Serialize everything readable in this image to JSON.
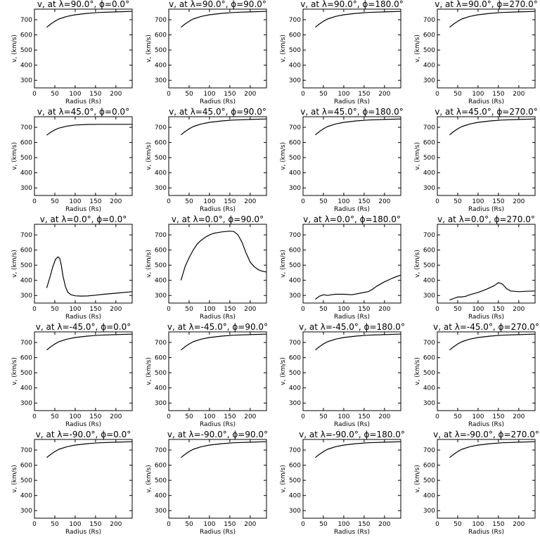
{
  "chart_data": [
    {
      "type": "line",
      "title": "v, at λ=90.0°, ϕ=0.0°",
      "xlabel": "Radius (Rs)",
      "ylabel": "v, (km/s)",
      "xlim": [
        0,
        240
      ],
      "ylim": [
        250,
        770
      ],
      "x_ticks": [
        "0",
        "50",
        "100",
        "150",
        "200"
      ],
      "y_ticks": [
        "300",
        "400",
        "500",
        "600",
        "700"
      ],
      "series": [
        {
          "x": [
            30,
            40,
            50,
            60,
            80,
            100,
            130,
            160,
            200,
            240
          ],
          "y": [
            650,
            672,
            690,
            705,
            722,
            733,
            742,
            748,
            752,
            755
          ]
        }
      ]
    },
    {
      "type": "line",
      "title": "v, at λ=90.0°, ϕ=90.0°",
      "xlabel": "Radius (Rs)",
      "ylabel": "v, (km/s)",
      "xlim": [
        0,
        240
      ],
      "ylim": [
        250,
        770
      ],
      "x_ticks": [
        "0",
        "50",
        "100",
        "150",
        "200"
      ],
      "y_ticks": [
        "300",
        "400",
        "500",
        "600",
        "700"
      ],
      "series": [
        {
          "x": [
            30,
            40,
            50,
            60,
            80,
            100,
            130,
            160,
            200,
            240
          ],
          "y": [
            650,
            672,
            690,
            705,
            722,
            733,
            742,
            748,
            752,
            755
          ]
        }
      ]
    },
    {
      "type": "line",
      "title": "v, at λ=90.0°, ϕ=180.0°",
      "xlabel": "Radius (Rs)",
      "ylabel": "v, (km/s)",
      "xlim": [
        0,
        240
      ],
      "ylim": [
        250,
        770
      ],
      "x_ticks": [
        "0",
        "50",
        "100",
        "150",
        "200"
      ],
      "y_ticks": [
        "300",
        "400",
        "500",
        "600",
        "700"
      ],
      "series": [
        {
          "x": [
            30,
            40,
            50,
            60,
            80,
            100,
            130,
            160,
            200,
            240
          ],
          "y": [
            650,
            672,
            690,
            705,
            722,
            733,
            742,
            748,
            752,
            755
          ]
        }
      ]
    },
    {
      "type": "line",
      "title": "v, at λ=90.0°, ϕ=270.0°",
      "xlabel": "Radius (Rs)",
      "ylabel": "v, (km/s)",
      "xlim": [
        0,
        240
      ],
      "ylim": [
        250,
        770
      ],
      "x_ticks": [
        "0",
        "50",
        "100",
        "150",
        "200"
      ],
      "y_ticks": [
        "300",
        "400",
        "500",
        "600",
        "700"
      ],
      "series": [
        {
          "x": [
            30,
            40,
            50,
            60,
            80,
            100,
            130,
            160,
            200,
            240
          ],
          "y": [
            650,
            672,
            690,
            705,
            722,
            733,
            742,
            748,
            752,
            755
          ]
        }
      ]
    },
    {
      "type": "line",
      "title": "v, at λ=45.0°, ϕ=0.0°",
      "xlabel": "Radius (Rs)",
      "ylabel": "v, (km/s)",
      "xlim": [
        0,
        240
      ],
      "ylim": [
        250,
        770
      ],
      "x_ticks": [
        "0",
        "50",
        "100",
        "150",
        "200"
      ],
      "y_ticks": [
        "300",
        "400",
        "500",
        "600",
        "700"
      ],
      "series": [
        {
          "x": [
            30,
            40,
            50,
            60,
            80,
            100,
            130,
            160,
            200,
            240
          ],
          "y": [
            648,
            668,
            683,
            695,
            708,
            715,
            719,
            720,
            720,
            720
          ]
        }
      ]
    },
    {
      "type": "line",
      "title": "v, at λ=45.0°, ϕ=90.0°",
      "xlabel": "Radius (Rs)",
      "ylabel": "v, (km/s)",
      "xlim": [
        0,
        240
      ],
      "ylim": [
        250,
        770
      ],
      "x_ticks": [
        "0",
        "50",
        "100",
        "150",
        "200"
      ],
      "y_ticks": [
        "300",
        "400",
        "500",
        "600",
        "700"
      ],
      "series": [
        {
          "x": [
            30,
            40,
            50,
            60,
            80,
            100,
            130,
            160,
            200,
            240
          ],
          "y": [
            650,
            672,
            690,
            705,
            722,
            733,
            742,
            748,
            752,
            755
          ]
        }
      ]
    },
    {
      "type": "line",
      "title": "v, at λ=45.0°, ϕ=180.0°",
      "xlabel": "Radius (Rs)",
      "ylabel": "v, (km/s)",
      "xlim": [
        0,
        240
      ],
      "ylim": [
        250,
        770
      ],
      "x_ticks": [
        "0",
        "50",
        "100",
        "150",
        "200"
      ],
      "y_ticks": [
        "300",
        "400",
        "500",
        "600",
        "700"
      ],
      "series": [
        {
          "x": [
            30,
            40,
            50,
            60,
            80,
            100,
            130,
            160,
            200,
            240
          ],
          "y": [
            650,
            672,
            690,
            705,
            722,
            733,
            742,
            748,
            752,
            755
          ]
        }
      ]
    },
    {
      "type": "line",
      "title": "v, at λ=45.0°, ϕ=270.0°",
      "xlabel": "Radius (Rs)",
      "ylabel": "v, (km/s)",
      "xlim": [
        0,
        240
      ],
      "ylim": [
        250,
        770
      ],
      "x_ticks": [
        "0",
        "50",
        "100",
        "150",
        "200"
      ],
      "y_ticks": [
        "300",
        "400",
        "500",
        "600",
        "700"
      ],
      "series": [
        {
          "x": [
            30,
            40,
            50,
            60,
            80,
            100,
            130,
            160,
            200,
            240
          ],
          "y": [
            650,
            672,
            690,
            705,
            722,
            733,
            742,
            748,
            752,
            755
          ]
        }
      ]
    },
    {
      "type": "line",
      "title": "v, at λ=0.0°, ϕ=0.0°",
      "xlabel": "Radius (Rs)",
      "ylabel": "v, (km/s)",
      "xlim": [
        0,
        240
      ],
      "ylim": [
        250,
        770
      ],
      "x_ticks": [
        "0",
        "50",
        "100",
        "150",
        "200"
      ],
      "y_ticks": [
        "300",
        "400",
        "500",
        "600",
        "700"
      ],
      "series": [
        {
          "x": [
            30,
            38,
            45,
            52,
            58,
            62,
            66,
            70,
            76,
            82,
            90,
            100,
            115,
            130,
            150,
            170,
            200,
            240
          ],
          "y": [
            350,
            420,
            490,
            540,
            555,
            545,
            500,
            430,
            360,
            320,
            305,
            298,
            296,
            297,
            302,
            308,
            315,
            325
          ]
        }
      ]
    },
    {
      "type": "line",
      "title": "v, at λ=0.0°, ϕ=90.0°",
      "xlabel": "Radius (Rs)",
      "ylabel": "v, (km/s)",
      "xlim": [
        0,
        240
      ],
      "ylim": [
        250,
        770
      ],
      "x_ticks": [
        "0",
        "50",
        "100",
        "150",
        "200"
      ],
      "y_ticks": [
        "300",
        "400",
        "500",
        "600",
        "700"
      ],
      "series": [
        {
          "x": [
            30,
            40,
            50,
            60,
            70,
            80,
            90,
            100,
            110,
            120,
            130,
            140,
            150,
            160,
            170,
            180,
            190,
            200,
            210,
            220,
            230,
            240
          ],
          "y": [
            400,
            490,
            550,
            600,
            640,
            665,
            685,
            700,
            710,
            715,
            720,
            722,
            725,
            722,
            700,
            650,
            580,
            520,
            490,
            470,
            460,
            455
          ]
        }
      ]
    },
    {
      "type": "line",
      "title": "v, at λ=0.0°, ϕ=180.0°",
      "xlabel": "Radius (Rs)",
      "ylabel": "v, (km/s)",
      "xlim": [
        0,
        240
      ],
      "ylim": [
        250,
        770
      ],
      "x_ticks": [
        "0",
        "50",
        "100",
        "150",
        "200"
      ],
      "y_ticks": [
        "300",
        "400",
        "500",
        "600",
        "700"
      ],
      "series": [
        {
          "x": [
            30,
            40,
            50,
            60,
            70,
            80,
            100,
            120,
            140,
            150,
            160,
            170,
            180,
            200,
            220,
            240
          ],
          "y": [
            275,
            295,
            305,
            300,
            305,
            308,
            308,
            305,
            315,
            320,
            325,
            340,
            360,
            390,
            415,
            435
          ]
        }
      ]
    },
    {
      "type": "line",
      "title": "v, at λ=0.0°, ϕ=270.0°",
      "xlabel": "Radius (Rs)",
      "ylabel": "v, (km/s)",
      "xlim": [
        0,
        240
      ],
      "ylim": [
        250,
        770
      ],
      "x_ticks": [
        "0",
        "50",
        "100",
        "150",
        "200"
      ],
      "y_ticks": [
        "300",
        "400",
        "500",
        "600",
        "700"
      ],
      "series": [
        {
          "x": [
            30,
            40,
            50,
            60,
            70,
            80,
            100,
            120,
            140,
            150,
            160,
            170,
            180,
            200,
            220,
            240
          ],
          "y": [
            270,
            280,
            290,
            290,
            295,
            305,
            320,
            340,
            365,
            385,
            375,
            345,
            330,
            325,
            328,
            330
          ]
        }
      ]
    },
    {
      "type": "line",
      "title": "v, at λ=-45.0°, ϕ=0.0°",
      "xlabel": "Radius (Rs)",
      "ylabel": "v, (km/s)",
      "xlim": [
        0,
        240
      ],
      "ylim": [
        250,
        770
      ],
      "x_ticks": [
        "0",
        "50",
        "100",
        "150",
        "200"
      ],
      "y_ticks": [
        "300",
        "400",
        "500",
        "600",
        "700"
      ],
      "series": [
        {
          "x": [
            30,
            40,
            50,
            60,
            80,
            100,
            130,
            160,
            200,
            240
          ],
          "y": [
            650,
            672,
            690,
            705,
            722,
            733,
            742,
            748,
            752,
            755
          ]
        }
      ]
    },
    {
      "type": "line",
      "title": "v, at λ=-45.0°, ϕ=90.0°",
      "xlabel": "Radius (Rs)",
      "ylabel": "v, (km/s)",
      "xlim": [
        0,
        240
      ],
      "ylim": [
        250,
        770
      ],
      "x_ticks": [
        "0",
        "50",
        "100",
        "150",
        "200"
      ],
      "y_ticks": [
        "300",
        "400",
        "500",
        "600",
        "700"
      ],
      "series": [
        {
          "x": [
            30,
            40,
            50,
            60,
            80,
            100,
            130,
            160,
            200,
            240
          ],
          "y": [
            650,
            672,
            690,
            705,
            722,
            733,
            742,
            748,
            752,
            755
          ]
        }
      ]
    },
    {
      "type": "line",
      "title": "v, at λ=-45.0°, ϕ=180.0°",
      "xlabel": "Radius (Rs)",
      "ylabel": "v, (km/s)",
      "xlim": [
        0,
        240
      ],
      "ylim": [
        250,
        770
      ],
      "x_ticks": [
        "0",
        "50",
        "100",
        "150",
        "200"
      ],
      "y_ticks": [
        "300",
        "400",
        "500",
        "600",
        "700"
      ],
      "series": [
        {
          "x": [
            30,
            40,
            50,
            60,
            80,
            100,
            130,
            160,
            200,
            240
          ],
          "y": [
            650,
            672,
            690,
            705,
            722,
            733,
            742,
            748,
            752,
            755
          ]
        }
      ]
    },
    {
      "type": "line",
      "title": "v, at λ=-45.0°, ϕ=270.0°",
      "xlabel": "Radius (Rs)",
      "ylabel": "v, (km/s)",
      "xlim": [
        0,
        240
      ],
      "ylim": [
        250,
        770
      ],
      "x_ticks": [
        "0",
        "50",
        "100",
        "150",
        "200"
      ],
      "y_ticks": [
        "300",
        "400",
        "500",
        "600",
        "700"
      ],
      "series": [
        {
          "x": [
            30,
            40,
            50,
            60,
            80,
            100,
            130,
            160,
            200,
            240
          ],
          "y": [
            650,
            672,
            690,
            705,
            722,
            733,
            742,
            748,
            752,
            755
          ]
        }
      ]
    },
    {
      "type": "line",
      "title": "v, at λ=-90.0°, ϕ=0.0°",
      "xlabel": "Radius (Rs)",
      "ylabel": "v, (km/s)",
      "xlim": [
        0,
        240
      ],
      "ylim": [
        250,
        770
      ],
      "x_ticks": [
        "0",
        "50",
        "100",
        "150",
        "200"
      ],
      "y_ticks": [
        "300",
        "400",
        "500",
        "600",
        "700"
      ],
      "series": [
        {
          "x": [
            30,
            40,
            50,
            60,
            80,
            100,
            130,
            160,
            200,
            240
          ],
          "y": [
            650,
            672,
            690,
            705,
            722,
            733,
            742,
            748,
            752,
            755
          ]
        }
      ]
    },
    {
      "type": "line",
      "title": "v, at λ=-90.0°, ϕ=90.0°",
      "xlabel": "Radius (Rs)",
      "ylabel": "v, (km/s)",
      "xlim": [
        0,
        240
      ],
      "ylim": [
        250,
        770
      ],
      "x_ticks": [
        "0",
        "50",
        "100",
        "150",
        "200"
      ],
      "y_ticks": [
        "300",
        "400",
        "500",
        "600",
        "700"
      ],
      "series": [
        {
          "x": [
            30,
            40,
            50,
            60,
            80,
            100,
            130,
            160,
            200,
            240
          ],
          "y": [
            650,
            672,
            690,
            705,
            722,
            733,
            742,
            748,
            752,
            755
          ]
        }
      ]
    },
    {
      "type": "line",
      "title": "v, at λ=-90.0°, ϕ=180.0°",
      "xlabel": "Radius (Rs)",
      "ylabel": "v, (km/s)",
      "xlim": [
        0,
        240
      ],
      "ylim": [
        250,
        770
      ],
      "x_ticks": [
        "0",
        "50",
        "100",
        "150",
        "200"
      ],
      "y_ticks": [
        "300",
        "400",
        "500",
        "600",
        "700"
      ],
      "series": [
        {
          "x": [
            30,
            40,
            50,
            60,
            80,
            100,
            130,
            160,
            200,
            240
          ],
          "y": [
            650,
            672,
            690,
            705,
            722,
            733,
            742,
            748,
            752,
            755
          ]
        }
      ]
    },
    {
      "type": "line",
      "title": "v, at λ=-90.0°, ϕ=270.0°",
      "xlabel": "Radius (Rs)",
      "ylabel": "v, (km/s)",
      "xlim": [
        0,
        240
      ],
      "ylim": [
        250,
        770
      ],
      "x_ticks": [
        "0",
        "50",
        "100",
        "150",
        "200"
      ],
      "y_ticks": [
        "300",
        "400",
        "500",
        "600",
        "700"
      ],
      "series": [
        {
          "x": [
            30,
            40,
            50,
            60,
            80,
            100,
            130,
            160,
            200,
            240
          ],
          "y": [
            650,
            672,
            690,
            705,
            722,
            733,
            742,
            748,
            752,
            755
          ]
        }
      ]
    }
  ]
}
